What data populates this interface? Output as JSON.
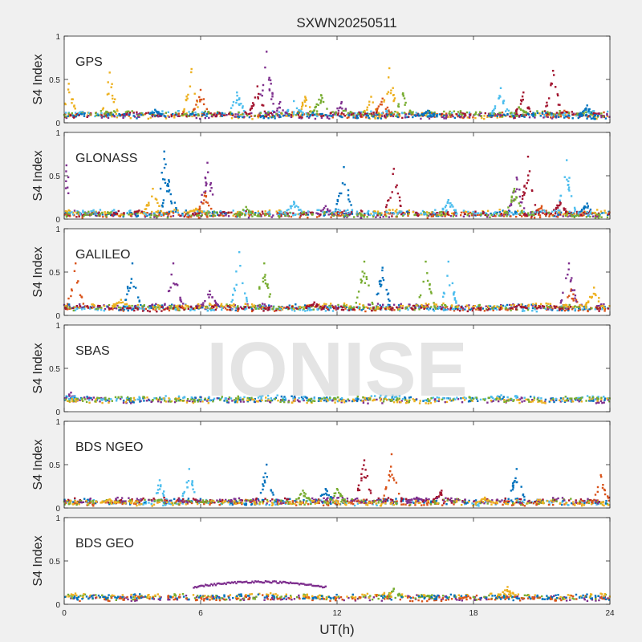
{
  "figure": {
    "title": "SXWN20250511",
    "xlabel": "UT(h)",
    "watermark": "IONISE"
  },
  "colors": {
    "blue": "#0072bd",
    "orange": "#d95319",
    "yellow": "#edb120",
    "purple": "#7e2f8e",
    "green": "#77ac30",
    "cyan": "#4dbeee",
    "darkred": "#a2142f"
  },
  "chart_data": [
    {
      "type": "scatter",
      "panel_label": "GPS",
      "ylabel": "S4 Index",
      "xlim": [
        0,
        24
      ],
      "ylim": [
        0,
        1
      ],
      "xticks": [
        "0",
        "6",
        "12",
        "18",
        "24"
      ],
      "yticks": [
        "0",
        "0.5",
        "1"
      ],
      "base_level": 0.08,
      "series": [
        {
          "color": "yellow",
          "peaks": [
            [
              0.2,
              0.45
            ],
            [
              2.0,
              0.58
            ],
            [
              5.6,
              0.62
            ],
            [
              10.6,
              0.3
            ],
            [
              13.5,
              0.3
            ],
            [
              14.3,
              0.63
            ]
          ]
        },
        {
          "color": "orange",
          "peaks": [
            [
              6.0,
              0.38
            ],
            [
              14.0,
              0.28
            ],
            [
              22.0,
              0.14
            ]
          ]
        },
        {
          "color": "cyan",
          "peaks": [
            [
              7.6,
              0.35
            ],
            [
              10.1,
              0.25
            ],
            [
              19.2,
              0.4
            ]
          ]
        },
        {
          "color": "purple",
          "peaks": [
            [
              8.9,
              0.82
            ],
            [
              9.5,
              0.24
            ],
            [
              12.2,
              0.24
            ]
          ]
        },
        {
          "color": "darkred",
          "peaks": [
            [
              8.5,
              0.42
            ],
            [
              20.2,
              0.35
            ],
            [
              21.5,
              0.6
            ]
          ]
        },
        {
          "color": "green",
          "peaks": [
            [
              11.3,
              0.32
            ],
            [
              14.9,
              0.34
            ],
            [
              20.0,
              0.18
            ]
          ]
        },
        {
          "color": "blue",
          "peaks": [
            [
              4.0,
              0.15
            ],
            [
              16.0,
              0.14
            ],
            [
              23.0,
              0.2
            ]
          ]
        }
      ]
    },
    {
      "type": "scatter",
      "panel_label": "GLONASS",
      "ylabel": "S4 Index",
      "xlim": [
        0,
        24
      ],
      "ylim": [
        0,
        1
      ],
      "xticks": [
        "0",
        "6",
        "12",
        "18",
        "24"
      ],
      "yticks": [
        "0",
        "0.5",
        "1"
      ],
      "base_level": 0.05,
      "series": [
        {
          "color": "purple",
          "peaks": [
            [
              0.1,
              0.62
            ],
            [
              6.3,
              0.65
            ],
            [
              11.5,
              0.15
            ],
            [
              19.9,
              0.48
            ]
          ]
        },
        {
          "color": "blue",
          "peaks": [
            [
              4.4,
              0.78
            ],
            [
              4.6,
              0.45
            ],
            [
              12.3,
              0.6
            ],
            [
              23.0,
              0.18
            ]
          ]
        },
        {
          "color": "yellow",
          "peaks": [
            [
              3.9,
              0.35
            ],
            [
              5.8,
              0.12
            ]
          ]
        },
        {
          "color": "orange",
          "peaks": [
            [
              6.2,
              0.3
            ],
            [
              21.0,
              0.15
            ]
          ]
        },
        {
          "color": "darkred",
          "peaks": [
            [
              14.5,
              0.58
            ],
            [
              20.4,
              0.72
            ],
            [
              21.8,
              0.2
            ]
          ]
        },
        {
          "color": "cyan",
          "peaks": [
            [
              10.1,
              0.2
            ],
            [
              16.9,
              0.22
            ],
            [
              22.1,
              0.68
            ]
          ]
        },
        {
          "color": "green",
          "peaks": [
            [
              8.0,
              0.14
            ],
            [
              19.8,
              0.35
            ]
          ]
        }
      ]
    },
    {
      "type": "scatter",
      "panel_label": "GALILEO",
      "ylabel": "S4 Index",
      "xlim": [
        0,
        24
      ],
      "ylim": [
        0,
        1
      ],
      "xticks": [
        "0",
        "6",
        "12",
        "18",
        "24"
      ],
      "yticks": [
        "0",
        "0.5",
        "1"
      ],
      "base_level": 0.08,
      "series": [
        {
          "color": "orange",
          "peaks": [
            [
              0.5,
              0.6
            ],
            [
              22.3,
              0.3
            ]
          ]
        },
        {
          "color": "blue",
          "peaks": [
            [
              3.0,
              0.6
            ],
            [
              14.0,
              0.55
            ]
          ]
        },
        {
          "color": "purple",
          "peaks": [
            [
              4.8,
              0.6
            ],
            [
              6.4,
              0.28
            ],
            [
              22.2,
              0.6
            ]
          ]
        },
        {
          "color": "cyan",
          "peaks": [
            [
              7.7,
              0.73
            ],
            [
              16.9,
              0.62
            ]
          ]
        },
        {
          "color": "green",
          "peaks": [
            [
              8.8,
              0.6
            ],
            [
              13.2,
              0.62
            ],
            [
              15.9,
              0.62
            ]
          ]
        },
        {
          "color": "yellow",
          "peaks": [
            [
              2.5,
              0.18
            ],
            [
              23.3,
              0.32
            ]
          ]
        },
        {
          "color": "darkred",
          "peaks": [
            [
              11.0,
              0.15
            ],
            [
              20.0,
              0.12
            ]
          ]
        }
      ]
    },
    {
      "type": "scatter",
      "panel_label": "SBAS",
      "ylabel": "S4 Index",
      "xlim": [
        0,
        24
      ],
      "ylim": [
        0,
        1
      ],
      "xticks": [
        "0",
        "6",
        "12",
        "18",
        "24"
      ],
      "yticks": [
        "0",
        "0.5",
        "1"
      ],
      "base_level": 0.13,
      "series": [
        {
          "color": "purple",
          "peaks": [
            [
              0.3,
              0.22
            ]
          ]
        },
        {
          "color": "blue",
          "peaks": []
        },
        {
          "color": "cyan",
          "peaks": []
        },
        {
          "color": "yellow",
          "peaks": []
        },
        {
          "color": "green",
          "peaks": []
        }
      ]
    },
    {
      "type": "scatter",
      "panel_label": "BDS NGEO",
      "ylabel": "S4 Index",
      "xlim": [
        0,
        24
      ],
      "ylim": [
        0,
        1
      ],
      "xticks": [
        "0",
        "6",
        "12",
        "18",
        "24"
      ],
      "yticks": [
        "0",
        "0.5",
        "1"
      ],
      "base_level": 0.06,
      "series": [
        {
          "color": "cyan",
          "peaks": [
            [
              4.2,
              0.32
            ],
            [
              5.5,
              0.45
            ]
          ]
        },
        {
          "color": "blue",
          "peaks": [
            [
              8.9,
              0.5
            ],
            [
              11.5,
              0.22
            ],
            [
              19.9,
              0.45
            ]
          ]
        },
        {
          "color": "darkred",
          "peaks": [
            [
              13.2,
              0.55
            ],
            [
              16.6,
              0.2
            ]
          ]
        },
        {
          "color": "orange",
          "peaks": [
            [
              14.4,
              0.62
            ],
            [
              23.6,
              0.38
            ]
          ]
        },
        {
          "color": "green",
          "peaks": [
            [
              10.5,
              0.2
            ],
            [
              12.0,
              0.22
            ]
          ]
        },
        {
          "color": "purple",
          "peaks": [
            [
              15.5,
              0.12
            ]
          ]
        },
        {
          "color": "yellow",
          "peaks": [
            [
              2.0,
              0.1
            ],
            [
              18.5,
              0.12
            ]
          ]
        }
      ]
    },
    {
      "type": "scatter",
      "panel_label": "BDS GEO",
      "ylabel": "S4 Index",
      "xlim": [
        0,
        24
      ],
      "ylim": [
        0,
        1
      ],
      "xticks": [
        "0",
        "6",
        "12",
        "18",
        "24"
      ],
      "yticks": [
        "0",
        "0.5",
        "1"
      ],
      "base_level": 0.07,
      "series": [
        {
          "color": "purple",
          "arc": [
            5.7,
            11.5,
            0.2,
            0.26
          ]
        },
        {
          "color": "green",
          "peaks": [
            [
              14.5,
              0.18
            ],
            [
              16.0,
              0.1
            ]
          ]
        },
        {
          "color": "yellow",
          "peaks": [
            [
              19.5,
              0.2
            ]
          ]
        },
        {
          "color": "orange",
          "peaks": []
        },
        {
          "color": "blue",
          "peaks": []
        }
      ]
    }
  ]
}
